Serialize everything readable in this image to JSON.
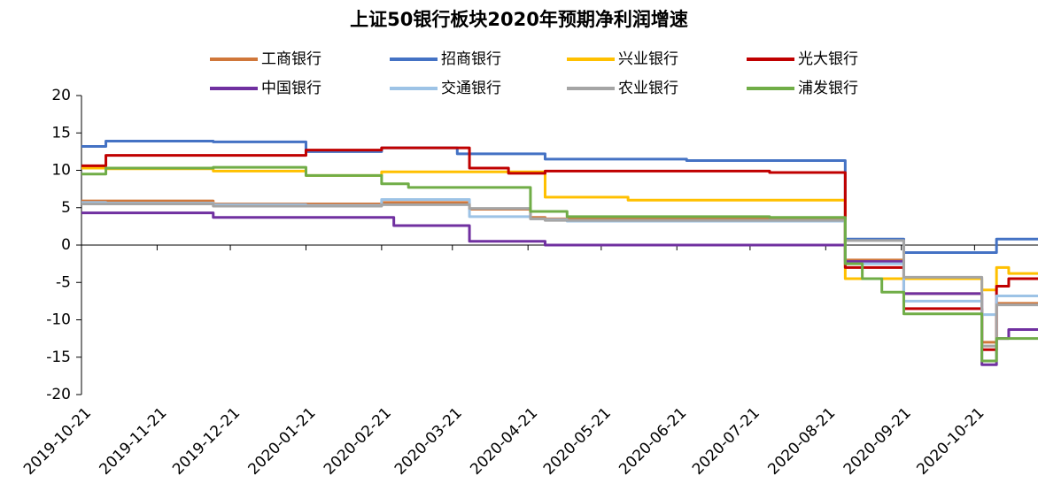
{
  "chart_data": {
    "type": "line",
    "step": true,
    "title": "上证50银行板块2020年预期净利润增速",
    "x": [
      "2019-10-21",
      "2019-10-31",
      "2019-12-14",
      "2020-01-21",
      "2020-02-01",
      "2020-02-21",
      "2020-02-26",
      "2020-03-03",
      "2020-03-23",
      "2020-03-28",
      "2020-04-13",
      "2020-04-22",
      "2020-04-28",
      "2020-05-07",
      "2020-06-01",
      "2020-06-25",
      "2020-07-29",
      "2020-08-29",
      "2020-09-05",
      "2020-09-13",
      "2020-09-22",
      "2020-10-24",
      "2020-10-30",
      "2020-11-04",
      "2020-11-16"
    ],
    "series": [
      {
        "name": "工商银行",
        "color": "#d0773a",
        "values": [
          5.9,
          5.9,
          5.5,
          5.5,
          5.5,
          5.7,
          5.7,
          5.7,
          5.7,
          4.8,
          4.8,
          3.7,
          3.5,
          3.5,
          3.5,
          3.5,
          3.5,
          -2,
          -2,
          -2,
          -6.5,
          -13,
          -7.8,
          -7.8,
          -7.8
        ]
      },
      {
        "name": "招商银行",
        "color": "#4472c4",
        "values": [
          13.2,
          13.9,
          13.8,
          12.5,
          12.5,
          13,
          13,
          13,
          12.2,
          12.2,
          12.2,
          12.2,
          11.5,
          11.5,
          11.5,
          11.3,
          11.3,
          0.8,
          0.8,
          0.8,
          -1,
          -1,
          0.8,
          0.8,
          0.8
        ]
      },
      {
        "name": "兴业银行",
        "color": "#ffc000",
        "values": [
          10.3,
          10.2,
          9.9,
          9.3,
          9.3,
          9.8,
          9.8,
          9.8,
          9.8,
          9.8,
          9.8,
          9.8,
          6.4,
          6.4,
          6,
          6,
          6,
          -4.5,
          -4.5,
          -4.5,
          -4.5,
          -6,
          -3,
          -3.8,
          -3.8
        ]
      },
      {
        "name": "光大银行",
        "color": "#c00000",
        "values": [
          10.6,
          12,
          12,
          12.7,
          12.7,
          13,
          13,
          13,
          13,
          10.3,
          9.6,
          9.6,
          9.9,
          9.9,
          9.9,
          9.9,
          9.7,
          -3,
          -3,
          -3,
          -8.5,
          -14,
          -5.5,
          -4.5,
          -4.5
        ]
      },
      {
        "name": "中国银行",
        "color": "#7030a0",
        "values": [
          4.3,
          4.3,
          3.7,
          3.7,
          3.7,
          3.7,
          2.6,
          2.6,
          2.6,
          0.5,
          0.5,
          0.5,
          0,
          0,
          0,
          0,
          0,
          -2.2,
          -2.2,
          -2.2,
          -6.5,
          -16,
          -12.5,
          -11.3,
          -11.3
        ]
      },
      {
        "name": "交通银行",
        "color": "#9dc3e6",
        "values": [
          5.7,
          5.6,
          5.4,
          5.3,
          5.3,
          6.1,
          6.1,
          6.1,
          6.1,
          3.8,
          3.8,
          3.5,
          3.4,
          3.2,
          3.2,
          3.2,
          3.2,
          -2.5,
          -2.5,
          -2.5,
          -7.5,
          -9.3,
          -6.8,
          -6.8,
          -6.8
        ]
      },
      {
        "name": "农业银行",
        "color": "#a5a5a5",
        "values": [
          5.5,
          5.5,
          5.2,
          5.2,
          5.2,
          5.4,
          5.4,
          5.4,
          5.4,
          4.9,
          4.9,
          3.5,
          3.3,
          3.3,
          3.3,
          3.3,
          3.3,
          0.6,
          0.6,
          0.6,
          -4.3,
          -13.5,
          -8,
          -8,
          -8
        ]
      },
      {
        "name": "浦发银行",
        "color": "#70ad47",
        "values": [
          9.5,
          10.3,
          10.4,
          9.3,
          9.3,
          8.2,
          8.2,
          7.7,
          7.7,
          7.7,
          7.7,
          4.5,
          4.5,
          3.8,
          3.8,
          3.8,
          3.7,
          -2.5,
          -4.5,
          -6.3,
          -9.2,
          -15.5,
          -12.5,
          -12.5,
          -12.5
        ]
      }
    ],
    "xlim": [
      "2019-10-21",
      "2020-11-16"
    ],
    "xticks": [
      "2019-10-21",
      "2019-11-21",
      "2019-12-21",
      "2020-01-21",
      "2020-02-21",
      "2020-03-21",
      "2020-04-21",
      "2020-05-21",
      "2020-06-21",
      "2020-07-21",
      "2020-08-21",
      "2020-09-21",
      "2020-10-21"
    ],
    "ylim": [
      -20,
      20
    ],
    "yticks": [
      -20,
      -15,
      -10,
      -5,
      0,
      5,
      10,
      15,
      20
    ],
    "legend": "top",
    "grid": false
  }
}
